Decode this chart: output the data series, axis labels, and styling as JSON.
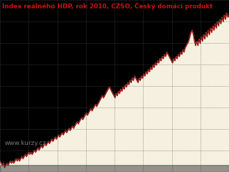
{
  "title": "Index reálného HDP, rok 2010, CZSO, Český domácí produkt",
  "watermark": "www.kurzy.cz",
  "line_color": "#990000",
  "fill_color": "#f5f0e0",
  "background_color": "#000000",
  "grid_color": "#555555",
  "title_color": "#cc1111",
  "title_fontsize": 6.5,
  "bottom_strip_color": "#333333",
  "y_values": [
    98,
    97,
    96,
    97,
    95,
    96,
    97,
    96,
    97,
    98,
    97,
    98,
    97,
    98,
    99,
    98,
    99,
    98,
    99,
    100,
    99,
    100,
    101,
    100,
    101,
    102,
    101,
    102,
    101,
    102,
    103,
    102,
    103,
    104,
    103,
    104,
    105,
    104,
    105,
    106,
    105,
    106,
    107,
    106,
    107,
    108,
    107,
    108,
    109,
    108,
    109,
    110,
    109,
    110,
    111,
    110,
    111,
    112,
    111,
    112,
    113,
    112,
    113,
    114,
    113,
    114,
    115,
    116,
    115,
    116,
    117,
    118,
    117,
    118,
    119,
    120,
    119,
    120,
    121,
    122,
    121,
    122,
    123,
    124,
    123,
    124,
    125,
    126,
    127,
    128,
    127,
    128,
    129,
    130,
    131,
    132,
    131,
    130,
    129,
    128,
    127,
    129,
    128,
    130,
    129,
    131,
    130,
    132,
    131,
    133,
    132,
    134,
    133,
    135,
    134,
    136,
    135,
    137,
    136,
    135,
    134,
    136,
    135,
    137,
    136,
    138,
    137,
    139,
    138,
    140,
    139,
    141,
    140,
    142,
    141,
    143,
    142,
    144,
    143,
    145,
    144,
    146,
    145,
    147,
    146,
    148,
    147,
    146,
    145,
    144,
    143,
    145,
    144,
    146,
    145,
    147,
    146,
    148,
    147,
    149,
    148,
    150,
    151,
    152,
    153,
    155,
    157,
    158,
    156,
    153,
    151,
    153,
    151,
    154,
    152,
    155,
    153,
    156,
    154,
    157,
    155,
    158,
    156,
    159,
    157,
    160,
    158,
    161,
    159,
    162,
    160,
    163,
    161,
    164,
    162,
    165,
    163,
    166,
    164,
    165
  ],
  "xlim": [
    0,
    199
  ],
  "ylim": [
    93,
    172
  ],
  "n_vlines": 9,
  "n_hlines": 9
}
